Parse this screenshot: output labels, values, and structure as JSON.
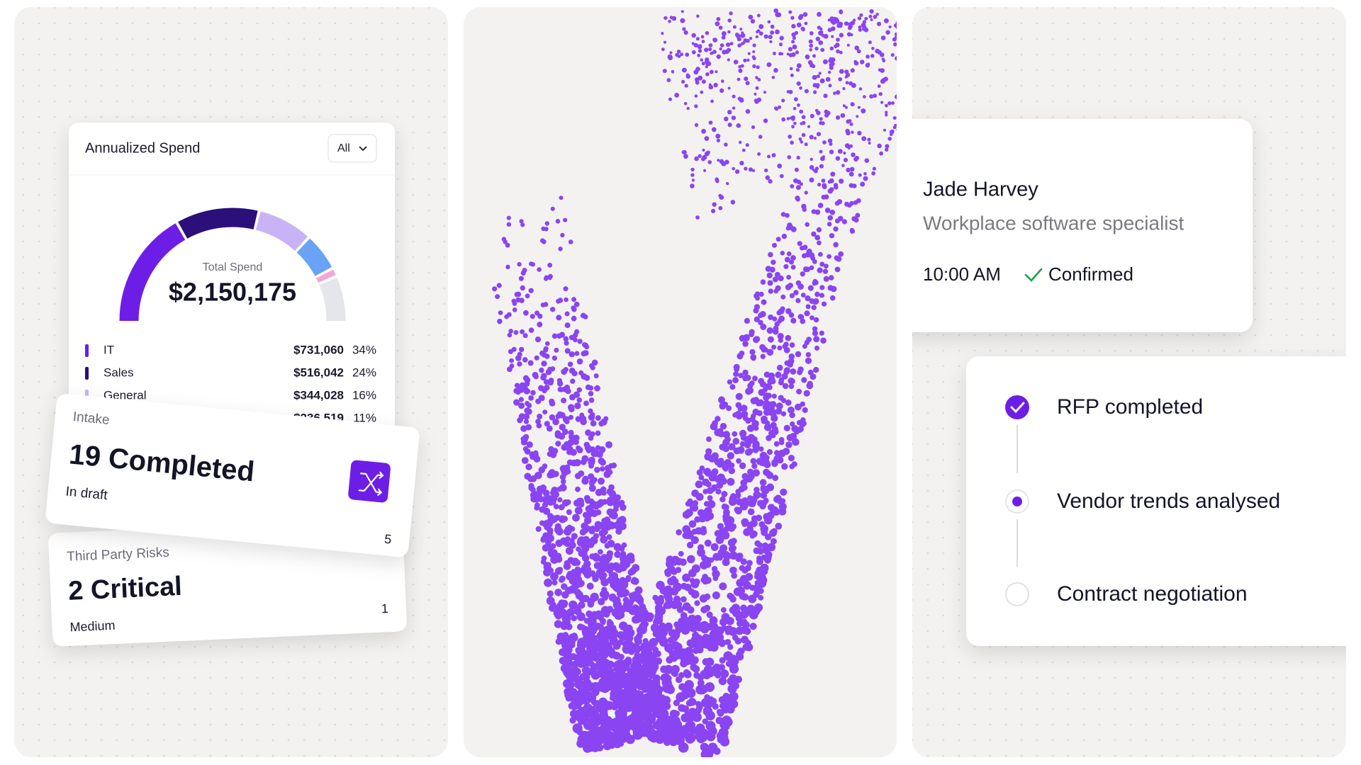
{
  "spend_card": {
    "title": "Annualized Spend",
    "filter": "All",
    "total_label": "Total Spend",
    "total": "$2,150,175",
    "rows": [
      {
        "name": "IT",
        "amount": "$731,060",
        "share": "34%",
        "color": "#6d1ee6"
      },
      {
        "name": "Sales",
        "amount": "$516,042",
        "share": "24%",
        "color": "#2b0f7a"
      },
      {
        "name": "General",
        "amount": "$344,028",
        "share": "16%",
        "color": "#c9b3f7"
      },
      {
        "name": null,
        "amount": "$236,519",
        "share": "11%",
        "color": "#6aa2f5"
      }
    ]
  },
  "intake_card": {
    "label": "Intake",
    "headline": "19 Completed",
    "status": "In draft",
    "count": "5"
  },
  "risk_card": {
    "label": "Third Party Risks",
    "headline": "2 Critical",
    "status": "Medium",
    "count": "1"
  },
  "contact_card": {
    "name": "Jade Harvey",
    "role": "Workplace software specialist",
    "time": "10:00 AM",
    "status": "Confirmed"
  },
  "steps": [
    {
      "label": "RFP completed"
    },
    {
      "label": "Vendor trends analysed"
    },
    {
      "label": "Contract negotiation"
    }
  ]
}
